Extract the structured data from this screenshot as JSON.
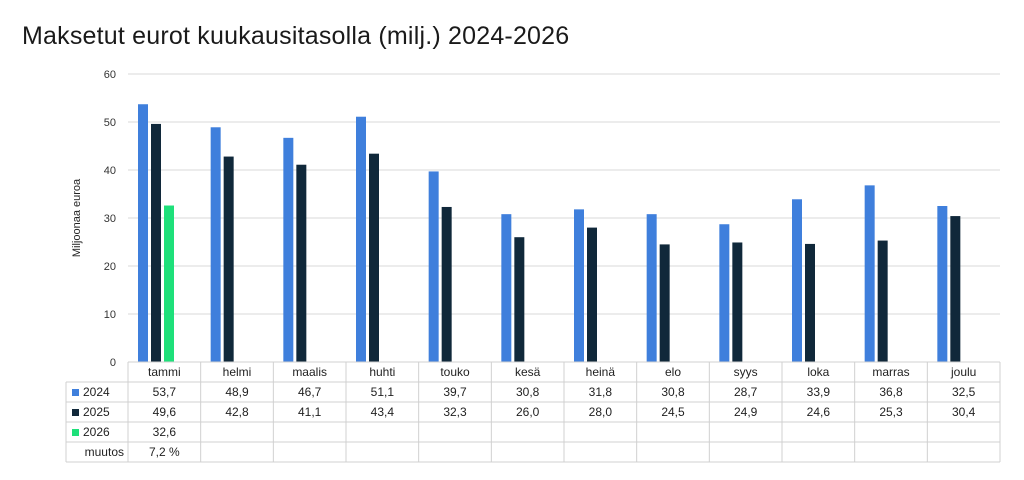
{
  "chart_data": {
    "type": "bar",
    "title": "Maksetut eurot kuukausitasolla (milj.) 2024-2026",
    "ylabel": "Miljoonaa euroa",
    "ylim": [
      0,
      60
    ],
    "yticks": [
      0,
      10,
      20,
      30,
      40,
      50,
      60
    ],
    "categories": [
      "tammi",
      "helmi",
      "maalis",
      "huhti",
      "touko",
      "kesä",
      "heinä",
      "elo",
      "syys",
      "loka",
      "marras",
      "joulu"
    ],
    "series": [
      {
        "name": "2024",
        "color": "#3f7fdc",
        "values": [
          53.7,
          48.9,
          46.7,
          51.1,
          39.7,
          30.8,
          31.8,
          30.8,
          28.7,
          33.9,
          36.8,
          32.5
        ],
        "labels": [
          "53,7",
          "48,9",
          "46,7",
          "51,1",
          "39,7",
          "30,8",
          "31,8",
          "30,8",
          "28,7",
          "33,9",
          "36,8",
          "32,5"
        ]
      },
      {
        "name": "2025",
        "color": "#10283a",
        "values": [
          49.6,
          42.8,
          41.1,
          43.4,
          32.3,
          26.0,
          28.0,
          24.5,
          24.9,
          24.6,
          25.3,
          30.4
        ],
        "labels": [
          "49,6",
          "42,8",
          "41,1",
          "43,4",
          "32,3",
          "26,0",
          "28,0",
          "24,5",
          "24,9",
          "24,6",
          "25,3",
          "30,4"
        ]
      },
      {
        "name": "2026",
        "color": "#1ee07a",
        "values": [
          32.6,
          null,
          null,
          null,
          null,
          null,
          null,
          null,
          null,
          null,
          null,
          null
        ],
        "labels": [
          "32,6",
          "",
          "",
          "",
          "",
          "",
          "",
          "",
          "",
          "",
          "",
          ""
        ]
      }
    ],
    "extra_row": {
      "name": "muutos",
      "labels": [
        "7,2 %",
        "",
        "",
        "",
        "",
        "",
        "",
        "",
        "",
        "",
        "",
        ""
      ]
    },
    "grid": true,
    "legend": "data-table"
  }
}
